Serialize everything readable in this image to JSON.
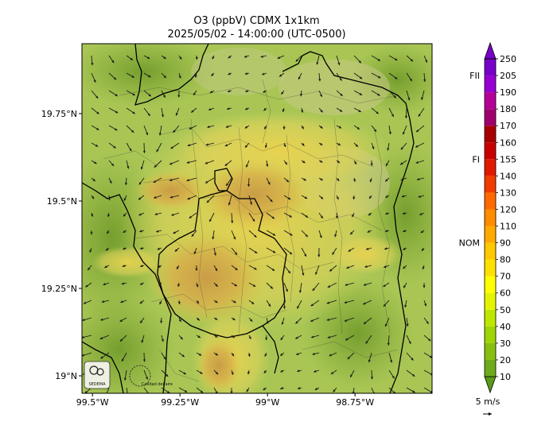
{
  "title": {
    "line1": "O3 (ppbV) CDMX 1x1km",
    "line2": "2025/05/02 - 14:00:00 (UTC-0500)"
  },
  "map": {
    "lat_ticks": [
      {
        "label": "19.75°N",
        "value": 19.75
      },
      {
        "label": "19.5°N",
        "value": 19.5
      },
      {
        "label": "19.25°N",
        "value": 19.25
      },
      {
        "label": "19°N",
        "value": 19.0
      }
    ],
    "lon_ticks": [
      {
        "label": "99.5°W",
        "value": -99.5
      },
      {
        "label": "99.25°W",
        "value": -99.25
      },
      {
        "label": "99°W",
        "value": -99.0
      },
      {
        "label": "98.75°W",
        "value": -98.75
      }
    ],
    "lat_range": [
      18.95,
      19.95
    ],
    "lon_range": [
      -99.53,
      -98.53
    ],
    "logos": [
      "SEDEMA",
      "Calidad del aire"
    ]
  },
  "colorbar": {
    "levels": [
      10,
      20,
      30,
      40,
      50,
      60,
      70,
      80,
      90,
      110,
      120,
      130,
      140,
      155,
      160,
      170,
      180,
      190,
      205,
      250
    ],
    "colors": [
      "#5a9a1a",
      "#6eaa1a",
      "#86bf10",
      "#9fd406",
      "#bde600",
      "#e4f300",
      "#ffff00",
      "#ffe100",
      "#ffc800",
      "#ffaa00",
      "#ff8c00",
      "#ff6a00",
      "#f03c00",
      "#e01a00",
      "#c80000",
      "#a80000",
      "#a0006e",
      "#b40096",
      "#9600d2",
      "#7800c8"
    ],
    "thresholds": [
      {
        "label": "FII",
        "value": 205
      },
      {
        "label": "FI",
        "value": 155
      },
      {
        "label": "NOM",
        "value": 90
      }
    ]
  },
  "wind_key": {
    "label": "5 m/s"
  }
}
